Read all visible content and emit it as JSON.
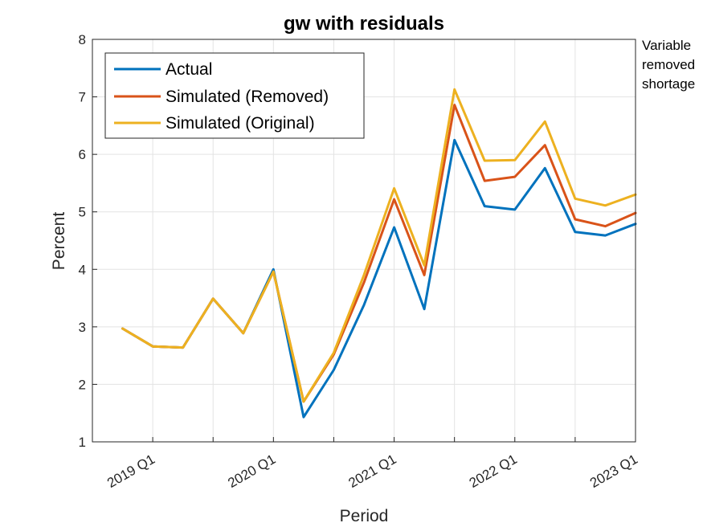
{
  "chart_data": {
    "type": "line",
    "title": "gw with residuals",
    "xlabel": "Period",
    "ylabel": "Percent",
    "ylim": [
      1,
      8
    ],
    "yticks": [
      "1",
      "2",
      "3",
      "4",
      "5",
      "6",
      "7",
      "8"
    ],
    "x": [
      "2018 Q3",
      "2018 Q4",
      "2019 Q1",
      "2019 Q2",
      "2019 Q3",
      "2019 Q4",
      "2020 Q1",
      "2020 Q2",
      "2020 Q3",
      "2020 Q4",
      "2021 Q1",
      "2021 Q2",
      "2021 Q3",
      "2021 Q4",
      "2022 Q1",
      "2022 Q2",
      "2022 Q3",
      "2022 Q4",
      "2023 Q1"
    ],
    "xticks": [
      "2019 Q1",
      "2020 Q1",
      "2021 Q1",
      "2022 Q1",
      "2023 Q1"
    ],
    "grid": true,
    "legend_position": "top-left",
    "series": [
      {
        "name": "Actual",
        "color": "#0072BD",
        "values": [
          null,
          2.97,
          2.66,
          2.64,
          3.49,
          2.89,
          4.0,
          1.43,
          2.25,
          3.38,
          4.73,
          3.31,
          6.25,
          5.1,
          5.04,
          5.76,
          4.65,
          4.59,
          4.79
        ]
      },
      {
        "name": "Simulated (Removed)",
        "color": "#D95319",
        "values": [
          null,
          2.97,
          2.66,
          2.64,
          3.49,
          2.89,
          3.96,
          1.7,
          2.52,
          3.77,
          5.22,
          3.9,
          6.86,
          5.54,
          5.61,
          6.16,
          4.87,
          4.75,
          4.98
        ]
      },
      {
        "name": "Simulated (Original)",
        "color": "#EDB120",
        "values": [
          null,
          2.97,
          2.66,
          2.64,
          3.49,
          2.89,
          3.96,
          1.7,
          2.55,
          3.9,
          5.41,
          4.07,
          7.13,
          5.89,
          5.9,
          6.57,
          5.23,
          5.11,
          5.3
        ]
      }
    ],
    "side_note": [
      "Variable",
      "removed",
      "shortage"
    ]
  }
}
